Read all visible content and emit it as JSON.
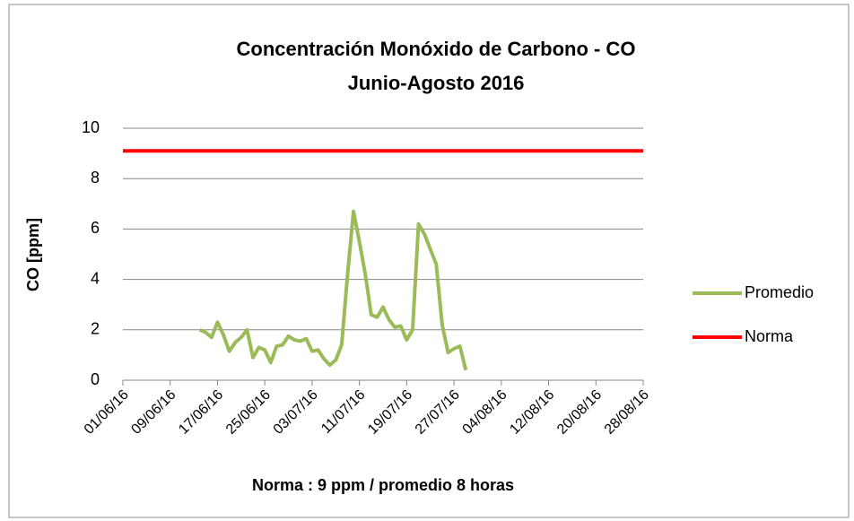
{
  "chart_data": {
    "type": "line",
    "title": "Concentración  Monóxido de Carbono - CO",
    "subtitle": "Junio-Agosto 2016",
    "ylabel": "CO [ppm]",
    "xlabel": "Norma : 9 ppm / promedio 8 horas",
    "xlim": [
      "01/06/16",
      "28/08/16"
    ],
    "xticks": [
      "01/06/16",
      "09/06/16",
      "17/06/16",
      "25/06/16",
      "03/07/16",
      "11/07/16",
      "19/07/16",
      "27/07/16",
      "04/08/16",
      "12/08/16",
      "20/08/16",
      "28/08/16"
    ],
    "ylim": [
      0,
      10
    ],
    "yticks": [
      0,
      2,
      4,
      6,
      8,
      10
    ],
    "grid": true,
    "legend": "right",
    "series": [
      {
        "name": "Promedio",
        "color": "#9bbb59",
        "x": [
          "14/06/16",
          "15/06/16",
          "16/06/16",
          "17/06/16",
          "18/06/16",
          "19/06/16",
          "20/06/16",
          "21/06/16",
          "22/06/16",
          "23/06/16",
          "24/06/16",
          "25/06/16",
          "26/06/16",
          "27/06/16",
          "28/06/16",
          "29/06/16",
          "30/06/16",
          "01/07/16",
          "02/07/16",
          "03/07/16",
          "04/07/16",
          "05/07/16",
          "06/07/16",
          "07/07/16",
          "08/07/16",
          "09/07/16",
          "10/07/16",
          "11/07/16",
          "12/07/16",
          "13/07/16",
          "14/07/16",
          "15/07/16",
          "16/07/16",
          "17/07/16",
          "18/07/16",
          "19/07/16",
          "20/07/16",
          "21/07/16",
          "22/07/16",
          "23/07/16",
          "24/07/16",
          "25/07/16",
          "26/07/16",
          "27/07/16",
          "28/07/16",
          "29/07/16"
        ],
        "values": [
          2.0,
          1.9,
          1.7,
          2.3,
          1.8,
          1.15,
          1.5,
          1.7,
          2.0,
          0.9,
          1.3,
          1.2,
          0.7,
          1.35,
          1.4,
          1.75,
          1.6,
          1.55,
          1.65,
          1.15,
          1.2,
          0.85,
          0.6,
          0.8,
          1.4,
          4.2,
          6.7,
          5.5,
          4.2,
          2.6,
          2.5,
          2.9,
          2.4,
          2.1,
          2.15,
          1.6,
          2.0,
          6.2,
          5.8,
          5.2,
          4.6,
          2.2,
          1.1,
          1.25,
          1.35,
          0.4
        ]
      },
      {
        "name": "Norma",
        "color": "#ff0000",
        "x": [
          "01/06/16",
          "28/08/16"
        ],
        "values": [
          9.1,
          9.1
        ]
      }
    ]
  }
}
